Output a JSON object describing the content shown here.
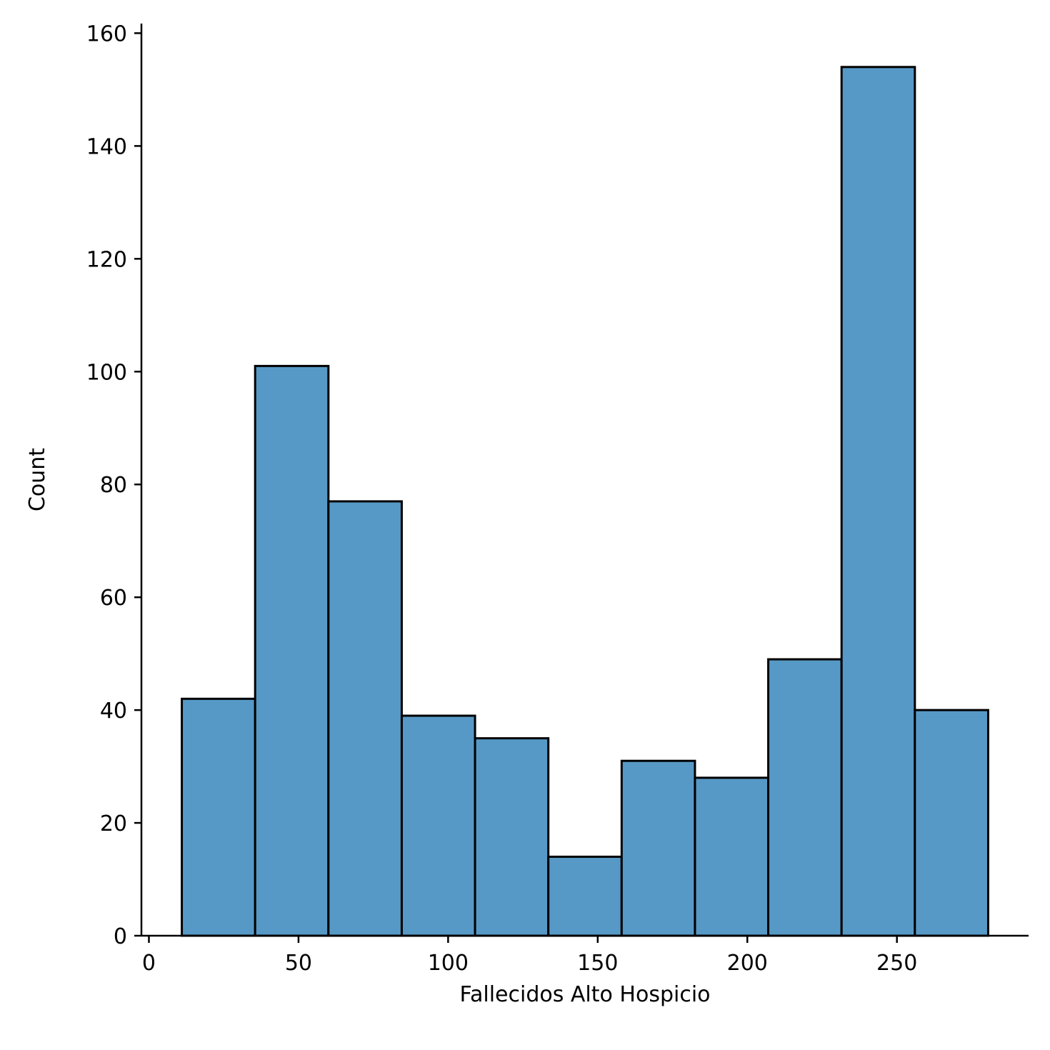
{
  "chart_data": {
    "type": "bar",
    "bins": [
      {
        "x0": 11.0,
        "x1": 35.5,
        "count": 42
      },
      {
        "x0": 35.5,
        "x1": 60.0,
        "count": 101
      },
      {
        "x0": 60.0,
        "x1": 84.5,
        "count": 77
      },
      {
        "x0": 84.5,
        "x1": 109.0,
        "count": 39
      },
      {
        "x0": 109.0,
        "x1": 133.5,
        "count": 35
      },
      {
        "x0": 133.5,
        "x1": 158.0,
        "count": 14
      },
      {
        "x0": 158.0,
        "x1": 182.5,
        "count": 31
      },
      {
        "x0": 182.5,
        "x1": 207.0,
        "count": 28
      },
      {
        "x0": 207.0,
        "x1": 231.5,
        "count": 49
      },
      {
        "x0": 231.5,
        "x1": 256.0,
        "count": 154
      },
      {
        "x0": 256.0,
        "x1": 280.5,
        "count": 40
      }
    ],
    "xlabel": "Fallecidos Alto Hospicio",
    "ylabel": "Count",
    "xlim": [
      -2.5,
      294.0
    ],
    "ylim": [
      0,
      161.7
    ],
    "xticks": [
      0,
      50,
      100,
      150,
      200,
      250
    ],
    "yticks": [
      0,
      20,
      40,
      60,
      80,
      100,
      120,
      140,
      160
    ],
    "grid": false,
    "bar_color": "#5799c6",
    "edge_color": "#000000"
  }
}
